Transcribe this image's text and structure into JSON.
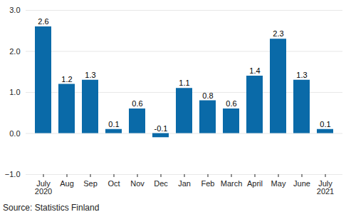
{
  "chart_data": {
    "type": "bar",
    "caption": "Source: Statistics Finland",
    "categories": [
      "July\n2020",
      "Aug",
      "Sep",
      "Oct",
      "Nov",
      "Dec",
      "Jan",
      "Feb",
      "March",
      "April",
      "May",
      "June",
      "July\n2021"
    ],
    "values": [
      2.6,
      1.2,
      1.3,
      0.1,
      0.6,
      -0.1,
      1.1,
      0.8,
      0.6,
      1.4,
      2.3,
      1.3,
      0.1
    ],
    "color": "#0a6aa8",
    "ylim": [
      -1,
      3
    ],
    "yticks": [
      -1,
      0,
      1,
      2,
      3
    ],
    "grid": true,
    "data_labels": true
  }
}
